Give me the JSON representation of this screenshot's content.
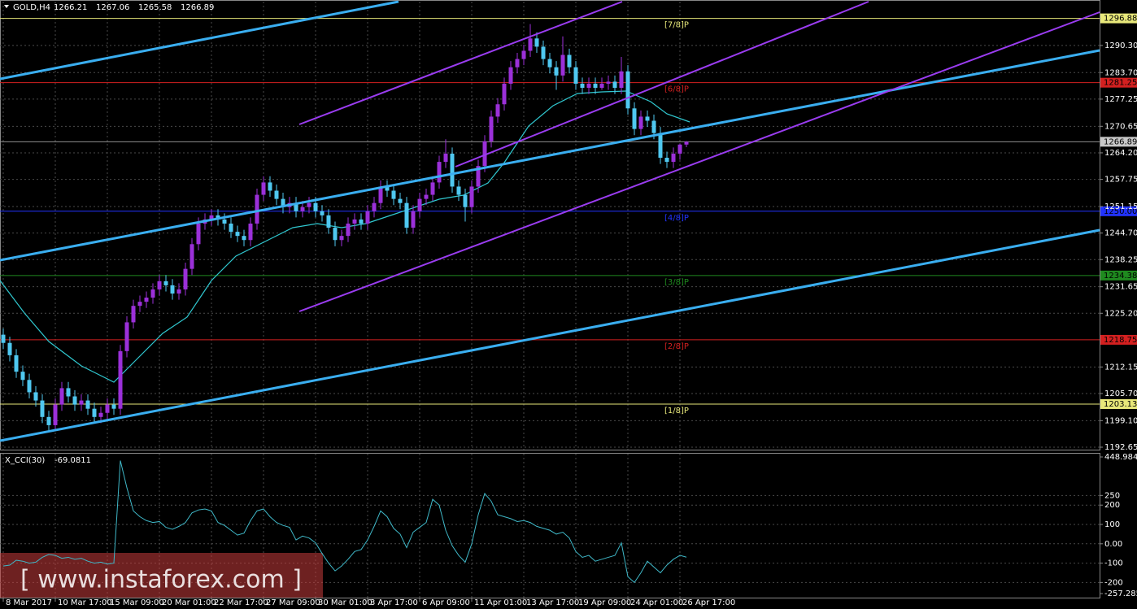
{
  "chart_data": {
    "type": "candlestick",
    "symbol": "GOLD,H4",
    "up_color": "#9b30d9",
    "down_color": "#4fc8f0",
    "grid": true,
    "ylim": [
      1192.65,
      1300.95
    ],
    "yticks": [
      {
        "value": 1290.3,
        "label": "1290.30"
      },
      {
        "value": 1283.7,
        "label": "1283.70"
      },
      1277.25,
      1270.65,
      {
        "value": 1264.2,
        "label": "1264.20"
      },
      1257.75,
      1251.15,
      {
        "value": 1244.7,
        "label": "1244.70"
      },
      1238.25,
      1231.65,
      {
        "value": 1225.2,
        "label": "1225.20"
      },
      1212.15,
      {
        "value": 1205.7,
        "label": "1205.70"
      },
      {
        "value": 1199.1,
        "label": "1199.10"
      },
      1192.65
    ],
    "xlim": [
      -0.5,
      168.5
    ],
    "xticks": [
      {
        "value": 0,
        "label": "8 Mar 2017"
      },
      {
        "value": 8,
        "label": "10 Mar 17:00"
      },
      {
        "value": 16,
        "label": "15 Mar 09:00"
      },
      {
        "value": 24,
        "label": "20 Mar 01:00"
      },
      {
        "value": 32,
        "label": "22 Mar 17:00"
      },
      {
        "value": 40,
        "label": "27 Mar 09:00"
      },
      {
        "value": 48,
        "label": "30 Mar 01:00"
      },
      {
        "value": 56,
        "label": "3 Apr 17:00"
      },
      {
        "value": 64,
        "label": "6 Apr 09:00"
      },
      {
        "value": 72,
        "label": "11 Apr 01:00"
      },
      {
        "value": 80,
        "label": "13 Apr 17:00"
      },
      {
        "value": 88,
        "label": "19 Apr 09:00"
      },
      {
        "value": 96,
        "label": "24 Apr 01:00"
      },
      {
        "value": 104,
        "label": "26 Apr 17:00"
      }
    ],
    "levels": [
      {
        "value": 1296.88,
        "value_label": "1296.88",
        "label": "[7/8]P",
        "color": "#e8e87a"
      },
      {
        "value": 1281.25,
        "value_label": "1281.25",
        "label": "[6/8]P",
        "color": "#d42020"
      },
      {
        "value": 1250,
        "value_label": "1250.00",
        "label": "[4/8]P",
        "color": "#2233ff"
      },
      {
        "value": 1234.38,
        "value_label": "1234.38",
        "label": "[3/8]P",
        "color": "#1f8a1f"
      },
      {
        "value": 1218.75,
        "value_label": "1218.75",
        "label": "[2/8]P",
        "color": "#d42020"
      },
      {
        "value": 1203.13,
        "value_label": "1203.13",
        "label": "[1/8]P",
        "color": "#e8e87a"
      }
    ],
    "candles": [
      [
        1220,
        1221.5,
        1216.5,
        1218
      ],
      [
        1218,
        1219.5,
        1213.5,
        1215
      ],
      [
        1215,
        1216.5,
        1209.5,
        1211
      ],
      [
        1211,
        1212.5,
        1207.5,
        1209
      ],
      [
        1209,
        1210.5,
        1204.5,
        1206
      ],
      [
        1206,
        1207.5,
        1202.5,
        1204
      ],
      [
        1204,
        1205.5,
        1198.5,
        1200
      ],
      [
        1200,
        1201.5,
        1196.5,
        1198
      ],
      [
        1198,
        1204.5,
        1196.5,
        1203
      ],
      [
        1203,
        1208.5,
        1201.5,
        1207
      ],
      [
        1207,
        1208.5,
        1203.5,
        1205
      ],
      [
        1205,
        1206.5,
        1201.5,
        1203
      ],
      [
        1203,
        1205.5,
        1201.5,
        1204
      ],
      [
        1204,
        1205.5,
        1200.5,
        1202
      ],
      [
        1202,
        1203.5,
        1198.5,
        1200
      ],
      [
        1200,
        1202.5,
        1198.5,
        1201
      ],
      [
        1201,
        1204.5,
        1199.5,
        1203
      ],
      [
        1203,
        1204.5,
        1200.5,
        1202
      ],
      [
        1202,
        1217.5,
        1200.5,
        1216
      ],
      [
        1216,
        1224.5,
        1214.5,
        1223
      ],
      [
        1223,
        1228.5,
        1221.5,
        1227
      ],
      [
        1227,
        1229.5,
        1225.5,
        1228
      ],
      [
        1228,
        1230.5,
        1226.5,
        1229
      ],
      [
        1229,
        1232.5,
        1227.5,
        1231
      ],
      [
        1231,
        1234.5,
        1229.5,
        1233
      ],
      [
        1233,
        1234.5,
        1230.5,
        1232
      ],
      [
        1232,
        1233.5,
        1228.5,
        1230
      ],
      [
        1230,
        1232.5,
        1228.5,
        1231
      ],
      [
        1231,
        1237.5,
        1229.5,
        1236
      ],
      [
        1236,
        1243.5,
        1234.5,
        1242
      ],
      [
        1242,
        1248.5,
        1240.5,
        1247
      ],
      [
        1247,
        1249.5,
        1245.5,
        1248
      ],
      [
        1248,
        1250.5,
        1246.5,
        1249
      ],
      [
        1249,
        1250.5,
        1246.5,
        1248
      ],
      [
        1248,
        1249.5,
        1245.5,
        1247
      ],
      [
        1247,
        1248.5,
        1243.5,
        1245
      ],
      [
        1245,
        1246.5,
        1242.5,
        1244
      ],
      [
        1244,
        1245.5,
        1241.5,
        1243
      ],
      [
        1243,
        1248.5,
        1241.5,
        1247
      ],
      [
        1247,
        1255.5,
        1245.5,
        1254
      ],
      [
        1254,
        1258.5,
        1252.5,
        1257
      ],
      [
        1257,
        1258.5,
        1253.5,
        1255
      ],
      [
        1255,
        1256.5,
        1251.5,
        1253
      ],
      [
        1253,
        1254.5,
        1249.5,
        1251
      ],
      [
        1251,
        1253.5,
        1249.5,
        1252
      ],
      [
        1252,
        1253.5,
        1248.5,
        1250
      ],
      [
        1250,
        1252.5,
        1248.5,
        1251
      ],
      [
        1251,
        1253.5,
        1249.5,
        1252
      ],
      [
        1252,
        1253.5,
        1248.5,
        1250
      ],
      [
        1250,
        1251.5,
        1247.5,
        1249
      ],
      [
        1249,
        1250.5,
        1244.5,
        1246
      ],
      [
        1246,
        1247.5,
        1241.5,
        1243
      ],
      [
        1243,
        1245.5,
        1241.5,
        1244
      ],
      [
        1244,
        1248.5,
        1242.5,
        1247
      ],
      [
        1247,
        1249.5,
        1245.5,
        1248
      ],
      [
        1248,
        1249.5,
        1245.5,
        1247
      ],
      [
        1247,
        1251.5,
        1245.5,
        1250
      ],
      [
        1250,
        1253.5,
        1248.5,
        1252
      ],
      [
        1252,
        1257.5,
        1250.5,
        1256
      ],
      [
        1256,
        1257.5,
        1253.5,
        1255
      ],
      [
        1255,
        1256.5,
        1251.5,
        1253
      ],
      [
        1253,
        1254.5,
        1250.5,
        1252
      ],
      [
        1252,
        1253.5,
        1244.5,
        1246
      ],
      [
        1246,
        1251.5,
        1244.5,
        1250
      ],
      [
        1250,
        1254.5,
        1248.5,
        1253
      ],
      [
        1253,
        1255.5,
        1251.5,
        1254
      ],
      [
        1254,
        1258.5,
        1252.5,
        1257
      ],
      [
        1257,
        1263.5,
        1255.5,
        1262
      ],
      [
        1262,
        1267.5,
        1260.5,
        1264
      ],
      [
        1264,
        1265.5,
        1254.5,
        1256
      ],
      [
        1256,
        1257.5,
        1252.5,
        1254
      ],
      [
        1254,
        1255.5,
        1247.5,
        1251
      ],
      [
        1251,
        1257.5,
        1249.5,
        1256
      ],
      [
        1256,
        1262.5,
        1254.5,
        1261
      ],
      [
        1261,
        1268.5,
        1259.5,
        1267
      ],
      [
        1267,
        1274.5,
        1265.5,
        1273
      ],
      [
        1273,
        1277.5,
        1271.5,
        1276
      ],
      [
        1276,
        1282.5,
        1274.5,
        1281
      ],
      [
        1281,
        1286.5,
        1279.5,
        1285
      ],
      [
        1285,
        1288.5,
        1283.5,
        1287
      ],
      [
        1287,
        1290.5,
        1285.5,
        1289
      ],
      [
        1289,
        1295.5,
        1287.5,
        1292
      ],
      [
        1292,
        1293.5,
        1288.5,
        1290
      ],
      [
        1290,
        1291.5,
        1285.5,
        1287
      ],
      [
        1287,
        1288.5,
        1283.5,
        1285
      ],
      [
        1285,
        1286.5,
        1279.5,
        1283
      ],
      [
        1283,
        1292.5,
        1281.5,
        1288
      ],
      [
        1288,
        1289.5,
        1283.5,
        1285
      ],
      [
        1285,
        1286.5,
        1279.5,
        1281
      ],
      [
        1281,
        1282.5,
        1278.5,
        1280
      ],
      [
        1280,
        1282.5,
        1278.5,
        1281
      ],
      [
        1281,
        1282.5,
        1278.5,
        1280
      ],
      [
        1280,
        1282.5,
        1279.5,
        1281
      ],
      [
        1281,
        1283,
        1279.5,
        1281.5
      ],
      [
        1281.5,
        1283,
        1278.5,
        1280
      ],
      [
        1280,
        1287.5,
        1278.5,
        1284
      ],
      [
        1284,
        1285.5,
        1273.5,
        1275
      ],
      [
        1275,
        1276.5,
        1268.5,
        1270
      ],
      [
        1270,
        1274.5,
        1268.5,
        1273
      ],
      [
        1273,
        1274.5,
        1270.5,
        1272
      ],
      [
        1272,
        1273.5,
        1267.5,
        1269
      ],
      [
        1269,
        1270.5,
        1261.5,
        1263
      ],
      [
        1263,
        1264.5,
        1260.5,
        1262
      ],
      [
        1262,
        1265.5,
        1260.5,
        1264
      ],
      [
        1264,
        1266.5,
        1262.5,
        1266.21
      ],
      [
        1266.21,
        1267.06,
        1265.58,
        1266.89
      ]
    ],
    "indicator": {
      "label": "X_CCI(30)",
      "color": "#3fb8c8",
      "ylim": [
        -257.285,
        448.9845
      ],
      "yticks": [
        448.9845,
        250,
        200,
        100,
        {
          "value": 0,
          "label": "0.00"
        },
        -100,
        -200,
        -257.285
      ],
      "values": [
        -115,
        -110,
        -85,
        -90,
        -100,
        -95,
        -70,
        -55,
        -60,
        -75,
        -70,
        -80,
        -75,
        -90,
        -100,
        -95,
        -105,
        -100,
        430,
        290,
        170,
        140,
        120,
        110,
        115,
        85,
        75,
        90,
        110,
        160,
        175,
        180,
        170,
        110,
        95,
        70,
        45,
        55,
        120,
        170,
        180,
        140,
        110,
        95,
        85,
        20,
        40,
        30,
        5,
        -50,
        -100,
        -140,
        -115,
        -80,
        -40,
        -30,
        20,
        90,
        170,
        140,
        80,
        50,
        -20,
        60,
        85,
        110,
        230,
        200,
        70,
        -10,
        -60,
        -95,
        0,
        150,
        260,
        220,
        150,
        140,
        130,
        115,
        120,
        110,
        90,
        80,
        70,
        50,
        60,
        30,
        -40,
        -70,
        -60,
        -90,
        -80,
        -70,
        -60,
        5,
        -170,
        -200,
        -150,
        -90,
        -120,
        -150,
        -110,
        -80,
        -60,
        -69.0811
      ]
    },
    "watermark": "[ www.instaforex.com ]"
  }
}
